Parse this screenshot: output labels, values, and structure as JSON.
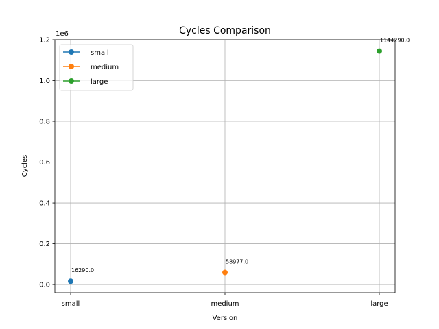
{
  "chart_data": {
    "type": "scatter",
    "title": "Cycles Comparison",
    "xlabel": "Version",
    "ylabel": "Cycles",
    "offset_label": "1e6",
    "categories": [
      "small",
      "medium",
      "large"
    ],
    "ylim": [
      -40000,
      1200000
    ],
    "yticks": [
      0,
      200000,
      400000,
      600000,
      800000,
      1000000,
      1200000
    ],
    "ytick_labels": [
      "0.0",
      "0.2",
      "0.4",
      "0.6",
      "0.8",
      "1.0",
      "1.2"
    ],
    "grid": true,
    "legend_position": "top-left",
    "series": [
      {
        "name": "small",
        "x": "small",
        "value": 16290,
        "annotation": "16290.0",
        "color": "#1f77b4"
      },
      {
        "name": "medium",
        "x": "medium",
        "value": 58977,
        "annotation": "58977.0",
        "color": "#ff7f0e"
      },
      {
        "name": "large",
        "x": "large",
        "value": 1144290,
        "annotation": "1144290.0",
        "color": "#2ca02c"
      }
    ]
  }
}
